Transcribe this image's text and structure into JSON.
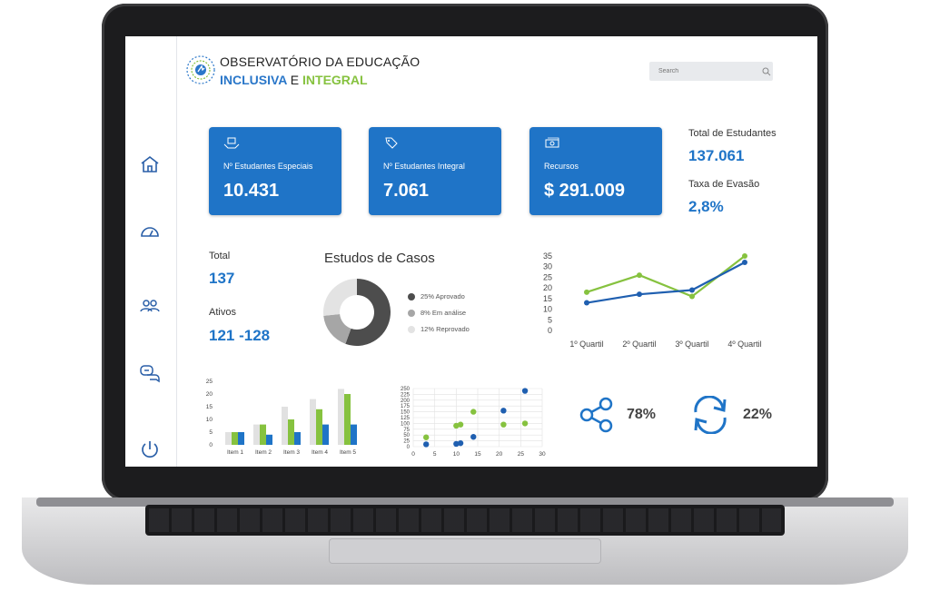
{
  "header": {
    "title_line1": "OBSERVATÓRIO DA EDUCAÇÃO",
    "title_inclusiva": "INCLUSIVA",
    "title_e": "E",
    "title_integral": "INTEGRAL",
    "search_placeholder": "Search"
  },
  "sidebar": {
    "items": [
      {
        "icon": "home-icon"
      },
      {
        "icon": "speedometer-icon"
      },
      {
        "icon": "users-icon"
      },
      {
        "icon": "chat-icon"
      },
      {
        "icon": "power-icon"
      }
    ]
  },
  "cards": [
    {
      "icon": "hands-box-icon",
      "label": "Nº Estudantes Especiais",
      "value": "10.431"
    },
    {
      "icon": "tag-icon",
      "label": "Nº Estudantes Integral",
      "value": "7.061"
    },
    {
      "icon": "money-icon",
      "label": "Recursos",
      "value": "$ 291.009"
    }
  ],
  "summary": {
    "total_estudantes_label": "Total de Estudantes",
    "total_estudantes_value": "137.061",
    "taxa_evasao_label": "Taxa de Evasão",
    "taxa_evasao_value": "2,8%"
  },
  "stats": {
    "total_label": "Total",
    "total_value": "137",
    "ativos_label": "Ativos",
    "ativos_value": "121 -128"
  },
  "colors": {
    "primary": "#1f74c7",
    "green": "#86c23f",
    "blue_line": "#1f5fb0",
    "donut_dark": "#4d4d4d",
    "donut_mid": "#a6a6a6",
    "donut_light": "#e3e3e3",
    "bar_gray": "#e1e1e1"
  },
  "chart_data": [
    {
      "type": "pie",
      "title": "Estudos de Casos",
      "labels": [
        "25% Aprovado",
        "8% Em análise",
        "12% Reprovado"
      ],
      "values": [
        25,
        8,
        12
      ],
      "legend": "right"
    },
    {
      "type": "line",
      "categories": [
        "1º Quartil",
        "2º Quartil",
        "3º Quartil",
        "4º Quartil"
      ],
      "ylim": [
        0,
        35
      ],
      "yticks": [
        0,
        5,
        10,
        15,
        20,
        25,
        30,
        35
      ],
      "series": [
        {
          "color": "#86c23f",
          "values": [
            18,
            26,
            16,
            35
          ]
        },
        {
          "color": "#1f5fb0",
          "values": [
            13,
            17,
            19,
            32
          ]
        }
      ]
    },
    {
      "type": "bar",
      "categories": [
        "Item 1",
        "Item 2",
        "Item 3",
        "Item 4",
        "Item 5"
      ],
      "ylim": [
        0,
        25
      ],
      "yticks": [
        0,
        5,
        10,
        15,
        20,
        25
      ],
      "series": [
        {
          "color": "#e1e1e1",
          "values": [
            5,
            8,
            15,
            18,
            22
          ]
        },
        {
          "color": "#86c23f",
          "values": [
            5,
            8,
            10,
            14,
            20
          ]
        },
        {
          "color": "#1f74c7",
          "values": [
            5,
            4,
            5,
            8,
            8
          ]
        }
      ]
    },
    {
      "type": "scatter",
      "xlim": [
        0,
        30
      ],
      "ylim": [
        0,
        250
      ],
      "xticks": [
        0,
        5,
        10,
        15,
        20,
        25,
        30
      ],
      "yticks": [
        0,
        25,
        50,
        75,
        100,
        125,
        150,
        175,
        200,
        225,
        250
      ],
      "grid": true,
      "series": [
        {
          "color": "#86c23f",
          "points": [
            [
              3,
              40
            ],
            [
              10,
              90
            ],
            [
              11,
              95
            ],
            [
              14,
              150
            ],
            [
              21,
              95
            ],
            [
              26,
              100
            ]
          ]
        },
        {
          "color": "#1f5fb0",
          "points": [
            [
              3,
              10
            ],
            [
              10,
              12
            ],
            [
              11,
              15
            ],
            [
              14,
              42
            ],
            [
              21,
              155
            ],
            [
              26,
              240
            ]
          ]
        }
      ]
    }
  ],
  "share": {
    "icon": "share-icon",
    "value": "78%"
  },
  "refresh": {
    "icon": "refresh-icon",
    "value": "22%"
  }
}
